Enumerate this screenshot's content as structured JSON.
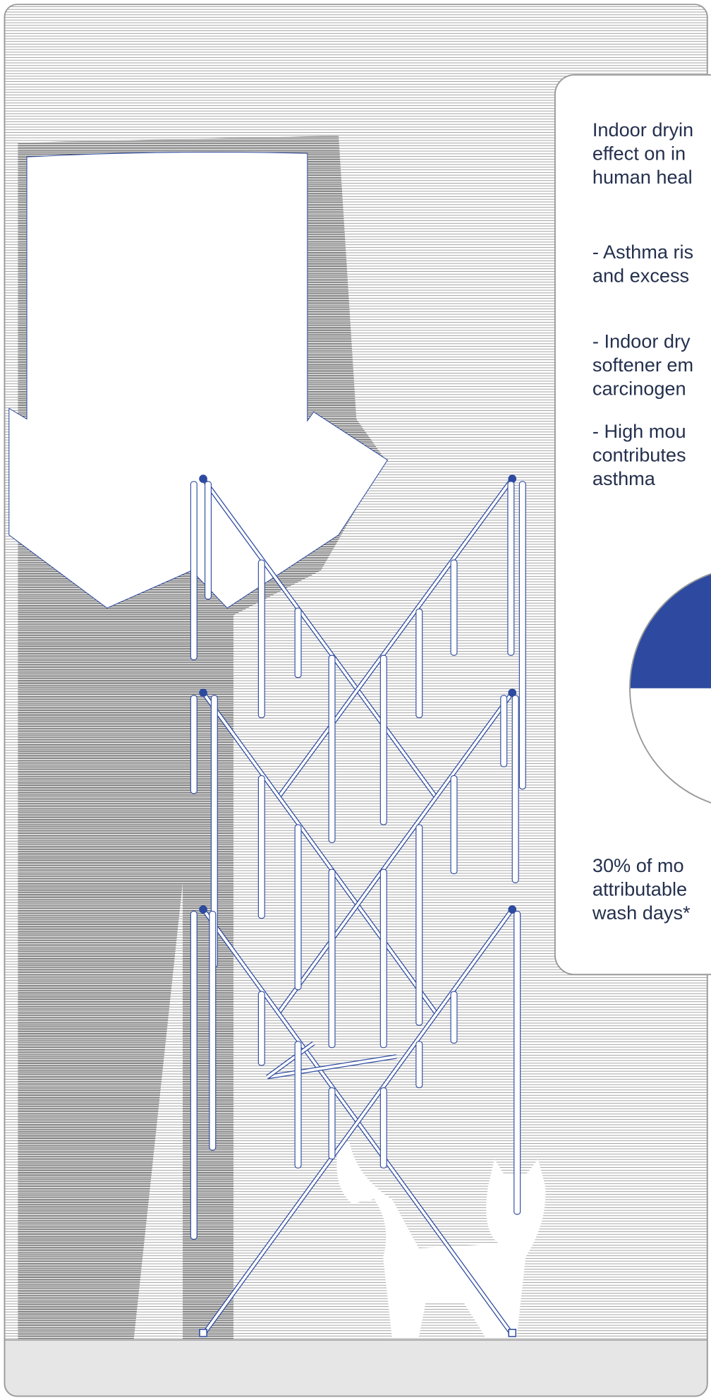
{
  "card": {
    "paragraphs": [
      [
        "Indoor dryin",
        "effect on in",
        "human heal"
      ],
      [
        "- Asthma ris",
        "and excess"
      ],
      [
        "- Indoor dry",
        "softener em",
        "carcinogen"
      ],
      [
        "- High mou",
        "contributes",
        "asthma"
      ]
    ],
    "footnote": [
      "30% of mo",
      "attributable",
      "wash days*"
    ]
  },
  "pie": {
    "values": [
      30,
      70
    ],
    "colors": [
      "#2d4aa0",
      "#ffffff"
    ]
  }
}
